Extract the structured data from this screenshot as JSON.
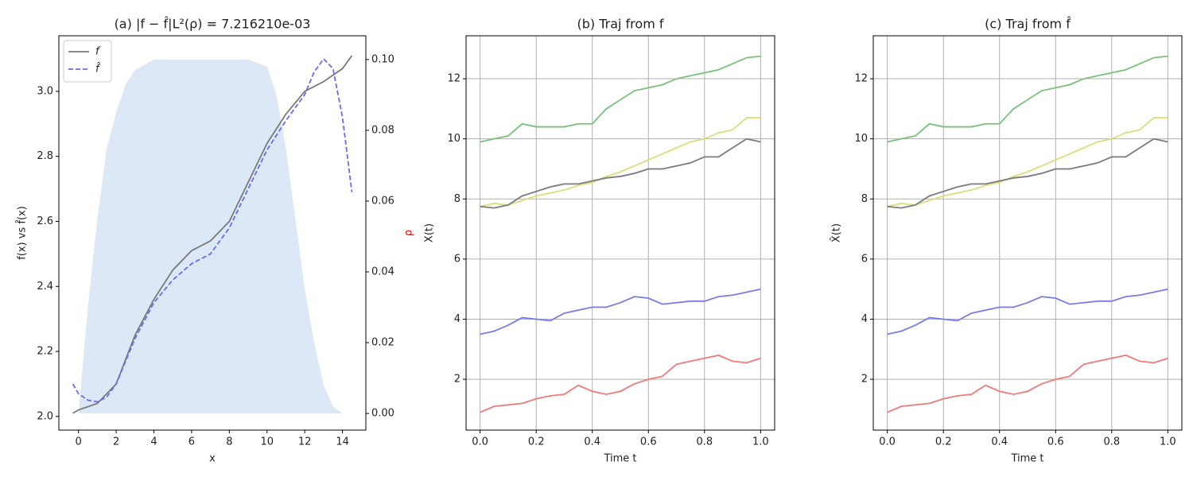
{
  "chart_data": [
    {
      "type": "line",
      "title": "(a) |f − f̂|L²(ρ) = 7.216210e-03",
      "xlabel": "x",
      "ylabel": "f(x) vs f̂(x)",
      "y2label": "ρ",
      "y2label_color": "#ff0000",
      "xlim": [
        -1.04,
        15.24
      ],
      "ylim": [
        1.958,
        3.171
      ],
      "y2lim": [
        -0.0047,
        0.1067
      ],
      "xticks": [
        0,
        2,
        4,
        6,
        8,
        10,
        12,
        14
      ],
      "yticks": [
        {
          "value": 2.0,
          "label": "2.0"
        },
        {
          "value": 2.2,
          "label": "2.2"
        },
        {
          "value": 2.4,
          "label": "2.4"
        },
        {
          "value": 2.6,
          "label": "2.6"
        },
        {
          "value": 2.8,
          "label": "2.8"
        },
        {
          "value": 3.0,
          "label": "3.0"
        }
      ],
      "y2ticks": [
        {
          "value": 0,
          "label": "0.00"
        },
        {
          "value": 0.02,
          "label": "0.02"
        },
        {
          "value": 0.04,
          "label": "0.04"
        },
        {
          "value": 0.06,
          "label": "0.06"
        },
        {
          "value": 0.08,
          "label": "0.08"
        },
        {
          "value": 0.1,
          "label": "0.10"
        }
      ],
      "grid": false,
      "legend": "upper left",
      "series": [
        {
          "axis": "y2",
          "fill": true,
          "color": "#dce8f5",
          "x": [
            0,
            0.5,
            1,
            1.5,
            2,
            2.5,
            3,
            4,
            5,
            6,
            7,
            8,
            9,
            10,
            10.5,
            11,
            11.5,
            12,
            12.5,
            13,
            13.5,
            14
          ],
          "values": [
            0,
            0.03,
            0.055,
            0.075,
            0.085,
            0.093,
            0.097,
            0.1,
            0.1,
            0.1,
            0.1,
            0.1,
            0.1,
            0.098,
            0.09,
            0.075,
            0.055,
            0.035,
            0.02,
            0.008,
            0.002,
            0
          ]
        },
        {
          "name": "f",
          "color": "#7a7a7a",
          "linestyle": "solid",
          "x": [
            -0.3,
            0,
            1,
            2,
            3,
            4,
            5,
            6,
            7,
            8,
            9,
            10,
            11,
            12,
            13,
            14,
            14.5
          ],
          "values": [
            2.01,
            2.02,
            2.04,
            2.1,
            2.25,
            2.36,
            2.45,
            2.51,
            2.54,
            2.6,
            2.72,
            2.84,
            2.93,
            3.0,
            3.03,
            3.07,
            3.11
          ]
        },
        {
          "name": "f̂",
          "color": "#6b6bf0",
          "linestyle": "dashed",
          "x": [
            -0.3,
            0,
            0.5,
            1,
            1.5,
            2,
            3,
            4,
            5,
            6,
            7,
            8,
            9,
            10,
            11,
            12,
            12.5,
            13,
            13.5,
            14,
            14.5
          ],
          "values": [
            2.1,
            2.07,
            2.05,
            2.045,
            2.06,
            2.1,
            2.24,
            2.35,
            2.42,
            2.47,
            2.5,
            2.58,
            2.7,
            2.82,
            2.91,
            2.99,
            3.06,
            3.1,
            3.07,
            2.92,
            2.69
          ]
        }
      ]
    },
    {
      "type": "line",
      "title": "(b) Traj from f",
      "xlabel": "Time t",
      "ylabel": "X(t)",
      "xlim": [
        -0.05,
        1.05
      ],
      "ylim": [
        0.31,
        13.43
      ],
      "xticks": [
        {
          "value": 0,
          "label": "0.0"
        },
        0.2,
        0.4,
        0.6,
        0.8,
        {
          "value": 1,
          "label": "1.0"
        }
      ],
      "yticks": [
        2,
        4,
        6,
        8,
        10,
        12
      ],
      "grid": true,
      "x": [
        0,
        0.05,
        0.1,
        0.15,
        0.2,
        0.25,
        0.3,
        0.35,
        0.4,
        0.45,
        0.5,
        0.55,
        0.6,
        0.65,
        0.7,
        0.75,
        0.8,
        0.85,
        0.9,
        0.95,
        1.0
      ],
      "series": [
        {
          "color": "#7cbf7c",
          "values": [
            9.9,
            10.0,
            10.1,
            10.5,
            10.4,
            10.4,
            10.4,
            10.5,
            10.5,
            11.0,
            11.3,
            11.6,
            11.7,
            11.8,
            12.0,
            12.1,
            12.2,
            12.3,
            12.5,
            12.7,
            12.75
          ]
        },
        {
          "color": "#dcdc7a",
          "values": [
            7.75,
            7.85,
            7.8,
            7.95,
            8.1,
            8.2,
            8.3,
            8.45,
            8.55,
            8.75,
            8.9,
            9.1,
            9.3,
            9.5,
            9.7,
            9.9,
            10.0,
            10.2,
            10.3,
            10.7,
            10.7
          ]
        },
        {
          "color": "#7a7a7a",
          "values": [
            7.75,
            7.7,
            7.8,
            8.1,
            8.25,
            8.4,
            8.5,
            8.5,
            8.6,
            8.7,
            8.75,
            8.85,
            9.0,
            9.0,
            9.1,
            9.2,
            9.4,
            9.4,
            9.7,
            10.0,
            9.9
          ]
        },
        {
          "color": "#7a7af0",
          "values": [
            3.5,
            3.6,
            3.8,
            4.05,
            4.0,
            3.95,
            4.2,
            4.3,
            4.4,
            4.4,
            4.55,
            4.75,
            4.7,
            4.5,
            4.55,
            4.6,
            4.6,
            4.75,
            4.8,
            4.9,
            5.0
          ]
        },
        {
          "color": "#f07a7a",
          "values": [
            0.9,
            1.1,
            1.15,
            1.2,
            1.35,
            1.45,
            1.5,
            1.8,
            1.6,
            1.5,
            1.6,
            1.85,
            2.0,
            2.1,
            2.5,
            2.6,
            2.7,
            2.8,
            2.6,
            2.55,
            2.7
          ]
        }
      ]
    },
    {
      "type": "line",
      "title": "(c) Traj from f̂",
      "xlabel": "Time t",
      "ylabel": "X̂(t)",
      "xlim": [
        -0.05,
        1.05
      ],
      "ylim": [
        0.31,
        13.43
      ],
      "xticks": [
        {
          "value": 0,
          "label": "0.0"
        },
        0.2,
        0.4,
        0.6,
        0.8,
        {
          "value": 1,
          "label": "1.0"
        }
      ],
      "yticks": [
        2,
        4,
        6,
        8,
        10,
        12
      ],
      "grid": true,
      "x": [
        0,
        0.05,
        0.1,
        0.15,
        0.2,
        0.25,
        0.3,
        0.35,
        0.4,
        0.45,
        0.5,
        0.55,
        0.6,
        0.65,
        0.7,
        0.75,
        0.8,
        0.85,
        0.9,
        0.95,
        1.0
      ],
      "series": [
        {
          "color": "#7cbf7c",
          "values": [
            9.9,
            10.0,
            10.1,
            10.5,
            10.4,
            10.4,
            10.4,
            10.5,
            10.5,
            11.0,
            11.3,
            11.6,
            11.7,
            11.8,
            12.0,
            12.1,
            12.2,
            12.3,
            12.5,
            12.7,
            12.75
          ]
        },
        {
          "color": "#dcdc7a",
          "values": [
            7.75,
            7.85,
            7.8,
            7.95,
            8.1,
            8.2,
            8.3,
            8.45,
            8.55,
            8.75,
            8.9,
            9.1,
            9.3,
            9.5,
            9.7,
            9.9,
            10.0,
            10.2,
            10.3,
            10.7,
            10.7
          ]
        },
        {
          "color": "#7a7a7a",
          "values": [
            7.75,
            7.7,
            7.8,
            8.1,
            8.25,
            8.4,
            8.5,
            8.5,
            8.6,
            8.7,
            8.75,
            8.85,
            9.0,
            9.0,
            9.1,
            9.2,
            9.4,
            9.4,
            9.7,
            10.0,
            9.9
          ]
        },
        {
          "color": "#7a7af0",
          "values": [
            3.5,
            3.6,
            3.8,
            4.05,
            4.0,
            3.95,
            4.2,
            4.3,
            4.4,
            4.4,
            4.55,
            4.75,
            4.7,
            4.5,
            4.55,
            4.6,
            4.6,
            4.75,
            4.8,
            4.9,
            5.0
          ]
        },
        {
          "color": "#f07a7a",
          "values": [
            0.9,
            1.1,
            1.15,
            1.2,
            1.35,
            1.45,
            1.5,
            1.8,
            1.6,
            1.5,
            1.6,
            1.85,
            2.0,
            2.1,
            2.5,
            2.6,
            2.7,
            2.8,
            2.6,
            2.55,
            2.7
          ]
        }
      ]
    }
  ]
}
